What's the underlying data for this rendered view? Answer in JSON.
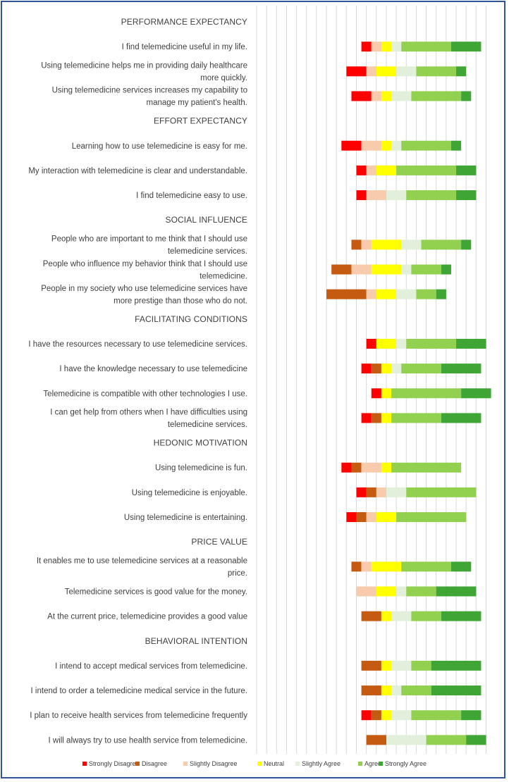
{
  "chart_data": {
    "type": "bar",
    "stacked": true,
    "orientation": "horizontal",
    "style": "diverging stacked bar (Likert)",
    "grid": true,
    "legend_position": "bottom",
    "scale_categories": [
      "Strongly Disagree",
      "Disagree",
      "Slightly Disagree",
      "Neutral",
      "Slightly Agree",
      "Agree",
      "Strongly Agree"
    ],
    "colors": [
      "#ff0000",
      "#c55a11",
      "#f8cbad",
      "#ffff00",
      "#e2efda",
      "#92d050",
      "#3fa535"
    ],
    "rows": [
      {
        "kind": "header",
        "text": "PERFORMANCE EXPECTANCY"
      },
      {
        "kind": "item",
        "lines": [
          "I find telemedicine useful in my life."
        ],
        "counts": [
          1,
          0,
          1,
          1,
          1,
          5,
          3
        ]
      },
      {
        "kind": "item",
        "lines": [
          "Using telemedicine helps me in providing daily healthcare",
          "more quickly."
        ],
        "counts": [
          2,
          0,
          1,
          2,
          2,
          4,
          1
        ]
      },
      {
        "kind": "item",
        "lines": [
          "Using telemedicine services increases my capability to",
          "manage my patient's health."
        ],
        "counts": [
          2,
          0,
          1,
          1,
          2,
          5,
          1
        ]
      },
      {
        "kind": "header",
        "text": "EFFORT EXPECTANCY"
      },
      {
        "kind": "item",
        "lines": [
          "Learning how to use telemedicine is easy for me."
        ],
        "counts": [
          2,
          0,
          2,
          1,
          1,
          5,
          1
        ]
      },
      {
        "kind": "item",
        "lines": [
          "My interaction with telemedicine is clear and understandable."
        ],
        "counts": [
          1,
          0,
          1,
          2,
          0,
          6,
          2
        ]
      },
      {
        "kind": "item",
        "lines": [
          "I find telemedicine easy to use."
        ],
        "counts": [
          1,
          0,
          2,
          0,
          2,
          5,
          2
        ]
      },
      {
        "kind": "header",
        "text": "SOCIAL INFLUENCE"
      },
      {
        "kind": "item",
        "lines": [
          "People who are important to me think that I should use",
          "telemedicine services."
        ],
        "counts": [
          0,
          1,
          1,
          3,
          2,
          4,
          1
        ]
      },
      {
        "kind": "item",
        "lines": [
          "People who influence my behavior think that I should use",
          "telemedicine."
        ],
        "counts": [
          0,
          2,
          2,
          3,
          1,
          3,
          1
        ]
      },
      {
        "kind": "item",
        "lines": [
          "People in my society who use telemedicine services have",
          "more prestige than those who do not."
        ],
        "counts": [
          0,
          4,
          1,
          2,
          2,
          2,
          1
        ]
      },
      {
        "kind": "header",
        "text": "FACILITATING CONDITIONS"
      },
      {
        "kind": "item",
        "lines": [
          "I have the resources necessary to use telemedicine services."
        ],
        "counts": [
          1,
          0,
          0,
          2,
          1,
          5,
          3
        ]
      },
      {
        "kind": "item",
        "lines": [
          "I have the knowledge necessary to use telemedicine"
        ],
        "counts": [
          1,
          1,
          0,
          1,
          1,
          4,
          4
        ]
      },
      {
        "kind": "item",
        "lines": [
          "Telemedicine is compatible with other technologies I use."
        ],
        "counts": [
          1,
          0,
          0,
          1,
          0,
          7,
          3
        ]
      },
      {
        "kind": "item",
        "lines": [
          "I can get help from others when I have difficulties using",
          "telemedicine services."
        ],
        "counts": [
          1,
          1,
          0,
          1,
          0,
          5,
          4
        ]
      },
      {
        "kind": "header",
        "text": "HEDONIC MOTIVATION"
      },
      {
        "kind": "item",
        "lines": [
          "Using telemedicine is fun."
        ],
        "counts": [
          1,
          1,
          2,
          1,
          0,
          7,
          0
        ]
      },
      {
        "kind": "item",
        "lines": [
          "Using telemedicine is enjoyable."
        ],
        "counts": [
          1,
          1,
          1,
          0,
          2,
          7,
          0
        ]
      },
      {
        "kind": "item",
        "lines": [
          "Using telemedicine is entertaining."
        ],
        "counts": [
          1,
          1,
          1,
          2,
          0,
          7,
          0
        ]
      },
      {
        "kind": "header",
        "text": "PRICE VALUE"
      },
      {
        "kind": "item",
        "lines": [
          "It enables me to use telemedicine services at a reasonable",
          "price."
        ],
        "counts": [
          0,
          1,
          1,
          3,
          0,
          5,
          2
        ]
      },
      {
        "kind": "item",
        "lines": [
          "Telemedicine services is good value for the money."
        ],
        "counts": [
          0,
          0,
          2,
          2,
          1,
          3,
          4
        ]
      },
      {
        "kind": "item",
        "lines": [
          "At the current price, telemedicine provides a good value"
        ],
        "counts": [
          0,
          2,
          0,
          1,
          2,
          3,
          4
        ]
      },
      {
        "kind": "header",
        "text": "BEHAVIORAL INTENTION"
      },
      {
        "kind": "item",
        "lines": [
          "I intend to accept medical services from telemedicine."
        ],
        "counts": [
          0,
          2,
          0,
          1,
          2,
          2,
          5
        ]
      },
      {
        "kind": "item",
        "lines": [
          "I intend to order a telemedicine medical service in the future."
        ],
        "counts": [
          0,
          2,
          0,
          1,
          1,
          3,
          5
        ]
      },
      {
        "kind": "item",
        "lines": [
          "I plan to receive health services from telemedicine frequently"
        ],
        "counts": [
          1,
          1,
          0,
          1,
          2,
          5,
          2
        ]
      },
      {
        "kind": "item",
        "lines": [
          "I will always try to use health service from telemedicine."
        ],
        "counts": [
          0,
          2,
          0,
          0,
          4,
          4,
          2
        ]
      }
    ]
  }
}
